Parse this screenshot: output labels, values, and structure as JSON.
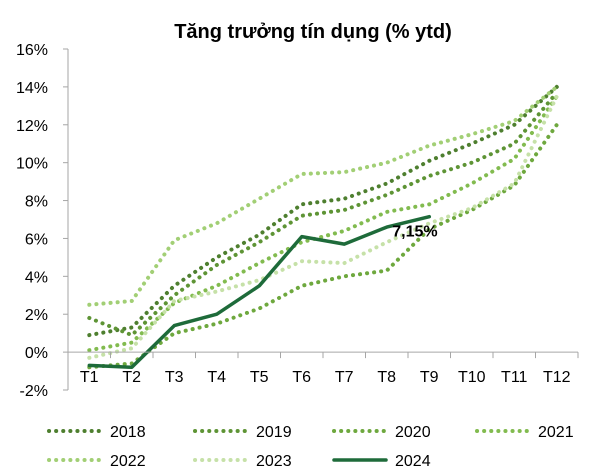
{
  "chart_data": {
    "type": "line",
    "title": "Tăng trưởng tín dụng (% ytd)",
    "xlabel": "",
    "ylabel": "",
    "categories": [
      "T1",
      "T2",
      "T3",
      "T4",
      "T5",
      "T6",
      "T7",
      "T8",
      "T9",
      "T10",
      "T11",
      "T12"
    ],
    "y_ticks": [
      "-2%",
      "0%",
      "2%",
      "4%",
      "6%",
      "8%",
      "10%",
      "12%",
      "14%",
      "16%"
    ],
    "ylim": [
      -2,
      16
    ],
    "grid": false,
    "legend_position": "bottom",
    "series": [
      {
        "name": "2018",
        "color": "#4e7f2f",
        "style": "dotted",
        "values": [
          0.9,
          1.3,
          3.5,
          5.0,
          6.2,
          7.8,
          8.1,
          8.9,
          10.1,
          11.0,
          12.0,
          14.0
        ]
      },
      {
        "name": "2019",
        "color": "#5e9435",
        "style": "dotted",
        "values": [
          1.8,
          0.9,
          3.0,
          4.6,
          5.8,
          7.2,
          7.5,
          8.3,
          9.3,
          10.0,
          11.0,
          13.7
        ]
      },
      {
        "name": "2020",
        "color": "#6ea83e",
        "style": "dotted",
        "values": [
          -0.8,
          -0.6,
          1.0,
          1.5,
          2.3,
          3.5,
          4.0,
          4.3,
          6.5,
          7.5,
          8.8,
          12.0
        ]
      },
      {
        "name": "2021",
        "color": "#82bb4f",
        "style": "dotted",
        "values": [
          0.1,
          0.5,
          2.6,
          3.5,
          4.7,
          5.8,
          6.4,
          7.4,
          7.8,
          8.9,
          10.2,
          13.5
        ]
      },
      {
        "name": "2022",
        "color": "#a2cf75",
        "style": "dotted",
        "values": [
          2.5,
          2.7,
          5.9,
          6.8,
          8.1,
          9.4,
          9.5,
          10.0,
          10.9,
          11.5,
          12.2,
          14.0
        ]
      },
      {
        "name": "2023",
        "color": "#c6e1a8",
        "style": "dotted",
        "values": [
          -0.3,
          0.2,
          2.7,
          3.2,
          3.8,
          4.8,
          4.7,
          5.8,
          6.8,
          7.6,
          8.9,
          13.5
        ]
      },
      {
        "name": "2024",
        "color": "#1e6b3a",
        "style": "solid",
        "values": [
          -0.7,
          -0.8,
          1.4,
          2.0,
          3.5,
          6.1,
          5.7,
          6.6,
          7.15,
          null,
          null,
          null
        ]
      }
    ],
    "annotations": [
      {
        "text": "7,15%",
        "series": "2024",
        "category": "T9"
      }
    ]
  }
}
